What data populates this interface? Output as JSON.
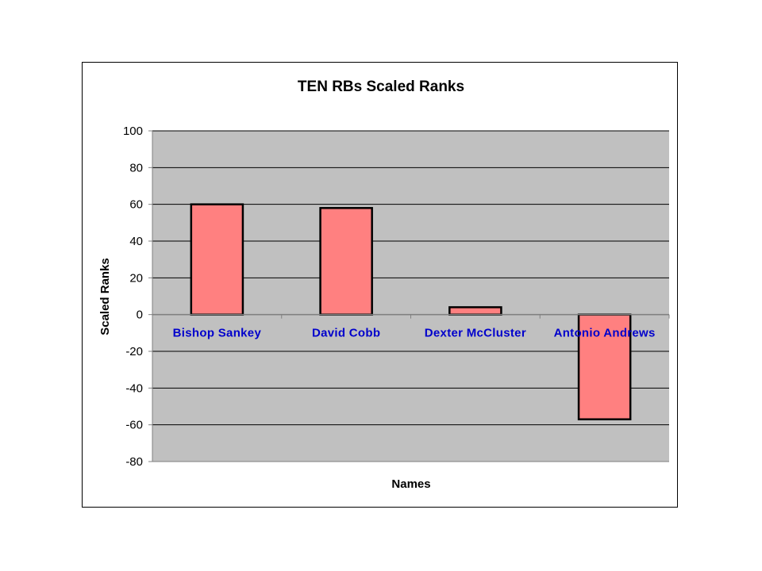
{
  "chart_data": {
    "type": "bar",
    "title": "TEN RBs Scaled Ranks",
    "xlabel": "Names",
    "ylabel": "Scaled Ranks",
    "categories": [
      "Bishop Sankey",
      "David Cobb",
      "Dexter McCluster",
      "Antonio Andrews"
    ],
    "values": [
      60,
      58,
      4,
      -57
    ],
    "ylim": [
      -80,
      100
    ],
    "yticks": [
      "100",
      "80",
      "60",
      "40",
      "20",
      "0",
      "-20",
      "-40",
      "-60",
      "-80"
    ],
    "grid": true,
    "legend": "none",
    "colors": {
      "plot_background": "#c0c0c0",
      "bar_fill": "#ff8080",
      "bar_stroke": "#000000",
      "category_label": "#0000cc",
      "gridline": "#000000"
    }
  }
}
